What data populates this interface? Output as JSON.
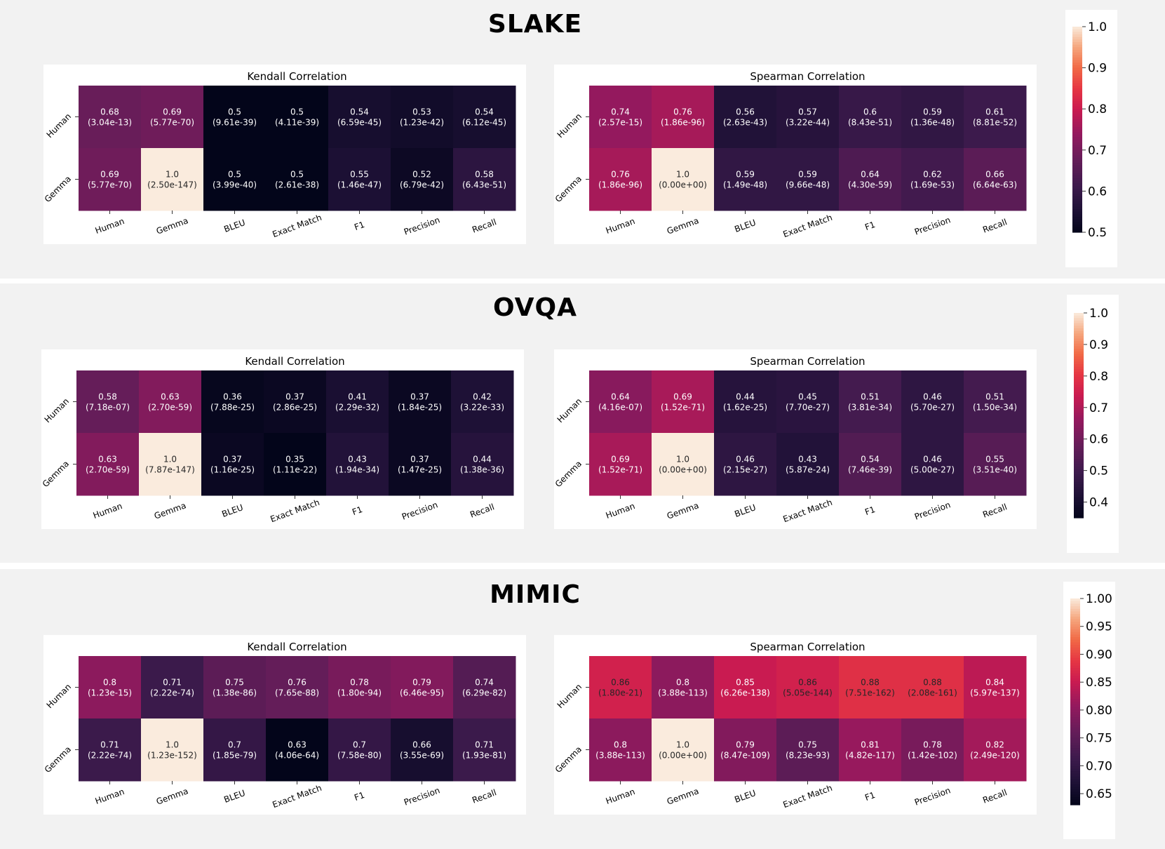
{
  "colorscale": "rocket",
  "chart_data": [
    {
      "type": "heatmap",
      "section": "SLAKE",
      "title": "Kendall Correlation",
      "x_labels": [
        "Human",
        "Gemma",
        "BLEU",
        "Exact Match",
        "F1",
        "Precision",
        "Recall"
      ],
      "y_labels": [
        "Human",
        "Gemma"
      ],
      "values": [
        [
          0.68,
          0.69,
          0.5,
          0.5,
          0.54,
          0.53,
          0.54
        ],
        [
          0.69,
          1.0,
          0.5,
          0.5,
          0.55,
          0.52,
          0.58
        ]
      ],
      "value_labels": [
        [
          "0.68",
          "0.69",
          "0.5",
          "0.5",
          "0.54",
          "0.53",
          "0.54"
        ],
        [
          "0.69",
          "1.0",
          "0.5",
          "0.5",
          "0.55",
          "0.52",
          "0.58"
        ]
      ],
      "p_values": [
        [
          "(3.04e-13)",
          "(5.77e-70)",
          "(9.61e-39)",
          "(4.11e-39)",
          "(6.59e-45)",
          "(1.23e-42)",
          "(6.12e-45)"
        ],
        [
          "(5.77e-70)",
          "(2.50e-147)",
          "(3.99e-40)",
          "(2.61e-38)",
          "(1.46e-47)",
          "(6.79e-42)",
          "(6.43e-51)"
        ]
      ],
      "vmin": 0.5,
      "vmax": 1.0
    },
    {
      "type": "heatmap",
      "section": "SLAKE",
      "title": "Spearman Correlation",
      "x_labels": [
        "Human",
        "Gemma",
        "BLEU",
        "Exact Match",
        "F1",
        "Precision",
        "Recall"
      ],
      "y_labels": [
        "Human",
        "Gemma"
      ],
      "values": [
        [
          0.74,
          0.76,
          0.56,
          0.57,
          0.6,
          0.59,
          0.61
        ],
        [
          0.76,
          1.0,
          0.59,
          0.59,
          0.64,
          0.62,
          0.66
        ]
      ],
      "value_labels": [
        [
          "0.74",
          "0.76",
          "0.56",
          "0.57",
          "0.6",
          "0.59",
          "0.61"
        ],
        [
          "0.76",
          "1.0",
          "0.59",
          "0.59",
          "0.64",
          "0.62",
          "0.66"
        ]
      ],
      "p_values": [
        [
          "(2.57e-15)",
          "(1.86e-96)",
          "(2.63e-43)",
          "(3.22e-44)",
          "(8.43e-51)",
          "(1.36e-48)",
          "(8.81e-52)"
        ],
        [
          "(1.86e-96)",
          "(0.00e+00)",
          "(1.49e-48)",
          "(9.66e-48)",
          "(4.30e-59)",
          "(1.69e-53)",
          "(6.64e-63)"
        ]
      ],
      "vmin": 0.5,
      "vmax": 1.0
    },
    {
      "type": "heatmap",
      "section": "OVQA",
      "title": "Kendall Correlation",
      "x_labels": [
        "Human",
        "Gemma",
        "BLEU",
        "Exact Match",
        "F1",
        "Precision",
        "Recall"
      ],
      "y_labels": [
        "Human",
        "Gemma"
      ],
      "values": [
        [
          0.58,
          0.63,
          0.36,
          0.37,
          0.41,
          0.37,
          0.42
        ],
        [
          0.63,
          1.0,
          0.37,
          0.35,
          0.43,
          0.37,
          0.44
        ]
      ],
      "value_labels": [
        [
          "0.58",
          "0.63",
          "0.36",
          "0.37",
          "0.41",
          "0.37",
          "0.42"
        ],
        [
          "0.63",
          "1.0",
          "0.37",
          "0.35",
          "0.43",
          "0.37",
          "0.44"
        ]
      ],
      "p_values": [
        [
          "(7.18e-07)",
          "(2.70e-59)",
          "(7.88e-25)",
          "(2.86e-25)",
          "(2.29e-32)",
          "(1.84e-25)",
          "(3.22e-33)"
        ],
        [
          "(2.70e-59)",
          "(7.87e-147)",
          "(1.16e-25)",
          "(1.11e-22)",
          "(1.94e-34)",
          "(1.47e-25)",
          "(1.38e-36)"
        ]
      ],
      "vmin": 0.35,
      "vmax": 1.0
    },
    {
      "type": "heatmap",
      "section": "OVQA",
      "title": "Spearman Correlation",
      "x_labels": [
        "Human",
        "Gemma",
        "BLEU",
        "Exact Match",
        "F1",
        "Precision",
        "Recall"
      ],
      "y_labels": [
        "Human",
        "Gemma"
      ],
      "values": [
        [
          0.64,
          0.69,
          0.44,
          0.45,
          0.51,
          0.46,
          0.51
        ],
        [
          0.69,
          1.0,
          0.46,
          0.43,
          0.54,
          0.46,
          0.55
        ]
      ],
      "value_labels": [
        [
          "0.64",
          "0.69",
          "0.44",
          "0.45",
          "0.51",
          "0.46",
          "0.51"
        ],
        [
          "0.69",
          "1.0",
          "0.46",
          "0.43",
          "0.54",
          "0.46",
          "0.55"
        ]
      ],
      "p_values": [
        [
          "(4.16e-07)",
          "(1.52e-71)",
          "(1.62e-25)",
          "(7.70e-27)",
          "(3.81e-34)",
          "(5.70e-27)",
          "(1.50e-34)"
        ],
        [
          "(1.52e-71)",
          "(0.00e+00)",
          "(2.15e-27)",
          "(5.87e-24)",
          "(7.46e-39)",
          "(5.00e-27)",
          "(3.51e-40)"
        ]
      ],
      "vmin": 0.35,
      "vmax": 1.0
    },
    {
      "type": "heatmap",
      "section": "MIMIC",
      "title": "Kendall Correlation",
      "x_labels": [
        "Human",
        "Gemma",
        "BLEU",
        "Exact Match",
        "F1",
        "Precision",
        "Recall"
      ],
      "y_labels": [
        "Human",
        "Gemma"
      ],
      "values": [
        [
          0.8,
          0.71,
          0.75,
          0.76,
          0.78,
          0.79,
          0.74
        ],
        [
          0.71,
          1.0,
          0.7,
          0.63,
          0.7,
          0.66,
          0.71
        ]
      ],
      "value_labels": [
        [
          "0.8",
          "0.71",
          "0.75",
          "0.76",
          "0.78",
          "0.79",
          "0.74"
        ],
        [
          "0.71",
          "1.0",
          "0.7",
          "0.63",
          "0.7",
          "0.66",
          "0.71"
        ]
      ],
      "p_values": [
        [
          "(1.23e-15)",
          "(2.22e-74)",
          "(1.38e-86)",
          "(7.65e-88)",
          "(1.80e-94)",
          "(6.46e-95)",
          "(6.29e-82)"
        ],
        [
          "(2.22e-74)",
          "(1.23e-152)",
          "(1.85e-79)",
          "(4.06e-64)",
          "(7.58e-80)",
          "(3.55e-69)",
          "(1.93e-81)"
        ]
      ],
      "vmin": 0.63,
      "vmax": 1.0
    },
    {
      "type": "heatmap",
      "section": "MIMIC",
      "title": "Spearman Correlation",
      "x_labels": [
        "Human",
        "Gemma",
        "BLEU",
        "Exact Match",
        "F1",
        "Precision",
        "Recall"
      ],
      "y_labels": [
        "Human",
        "Gemma"
      ],
      "values": [
        [
          0.86,
          0.8,
          0.85,
          0.86,
          0.88,
          0.88,
          0.84
        ],
        [
          0.8,
          1.0,
          0.79,
          0.75,
          0.81,
          0.78,
          0.82
        ]
      ],
      "value_labels": [
        [
          "0.86",
          "0.8",
          "0.85",
          "0.86",
          "0.88",
          "0.88",
          "0.84"
        ],
        [
          "0.8",
          "1.0",
          "0.79",
          "0.75",
          "0.81",
          "0.78",
          "0.82"
        ]
      ],
      "p_values": [
        [
          "(1.80e-21)",
          "(3.88e-113)",
          "(6.26e-138)",
          "(5.05e-144)",
          "(7.51e-162)",
          "(2.08e-161)",
          "(5.97e-137)"
        ],
        [
          "(3.88e-113)",
          "(0.00e+00)",
          "(8.47e-109)",
          "(8.23e-93)",
          "(4.82e-117)",
          "(1.42e-102)",
          "(2.49e-120)"
        ]
      ],
      "vmin": 0.63,
      "vmax": 1.0
    }
  ],
  "sections": [
    {
      "title": "SLAKE",
      "colorbar": {
        "vmin": 0.5,
        "vmax": 1.0,
        "ticks": [
          0.5,
          0.6,
          0.7,
          0.8,
          0.9,
          1.0
        ],
        "tick_labels": [
          "0.5",
          "0.6",
          "0.7",
          "0.8",
          "0.9",
          "1.0"
        ]
      }
    },
    {
      "title": "OVQA",
      "colorbar": {
        "vmin": 0.35,
        "vmax": 1.0,
        "ticks": [
          0.4,
          0.5,
          0.6,
          0.7,
          0.8,
          0.9,
          1.0
        ],
        "tick_labels": [
          "0.4",
          "0.5",
          "0.6",
          "0.7",
          "0.8",
          "0.9",
          "1.0"
        ]
      }
    },
    {
      "title": "MIMIC",
      "colorbar": {
        "vmin": 0.63,
        "vmax": 1.0,
        "ticks": [
          0.65,
          0.7,
          0.75,
          0.8,
          0.85,
          0.9,
          0.95,
          1.0
        ],
        "tick_labels": [
          "0.65",
          "0.70",
          "0.75",
          "0.80",
          "0.85",
          "0.90",
          "0.95",
          "1.00"
        ]
      }
    }
  ]
}
